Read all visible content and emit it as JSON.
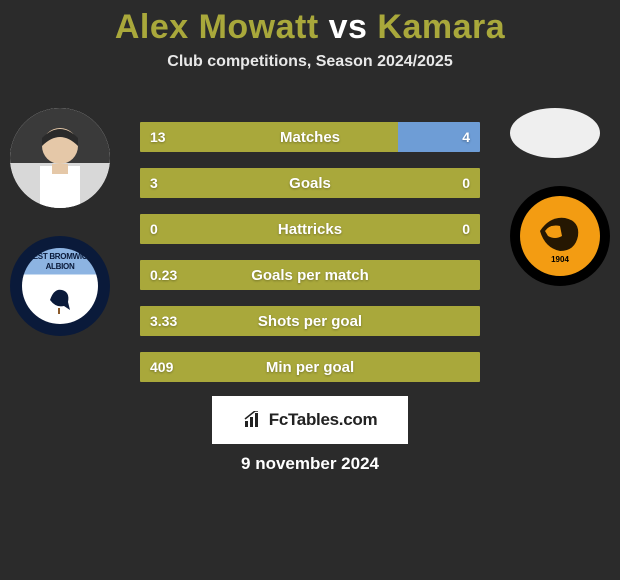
{
  "title": {
    "player1": "Alex Mowatt",
    "vs": "vs",
    "player2": "Kamara",
    "color": "#a9a83b"
  },
  "subtitle": "Club competitions, Season 2024/2025",
  "colors": {
    "bar_left": "#a9a83b",
    "bar_right": "#6e9dd6",
    "bar_bg": "#a9a83b",
    "background": "#2b2b2b",
    "text": "#ffffff"
  },
  "bars": [
    {
      "label": "Matches",
      "left": "13",
      "right": "4",
      "left_pct": 76,
      "right_pct": 24,
      "show_right": true
    },
    {
      "label": "Goals",
      "left": "3",
      "right": "0",
      "left_pct": 100,
      "right_pct": 0,
      "show_right": true
    },
    {
      "label": "Hattricks",
      "left": "0",
      "right": "0",
      "left_pct": 100,
      "right_pct": 0,
      "show_right": true
    },
    {
      "label": "Goals per match",
      "left": "0.23",
      "right": "",
      "left_pct": 100,
      "right_pct": 0,
      "show_right": false
    },
    {
      "label": "Shots per goal",
      "left": "3.33",
      "right": "",
      "left_pct": 100,
      "right_pct": 0,
      "show_right": false
    },
    {
      "label": "Min per goal",
      "left": "409",
      "right": "",
      "left_pct": 100,
      "right_pct": 0,
      "show_right": false
    }
  ],
  "footer": {
    "brand_fc": "Fc",
    "brand_rest": "Tables.com"
  },
  "date": "9 november 2024",
  "clubs": {
    "left_name": "EST BROMWIC",
    "left_sub": "ALBION",
    "right_year": "1904"
  }
}
